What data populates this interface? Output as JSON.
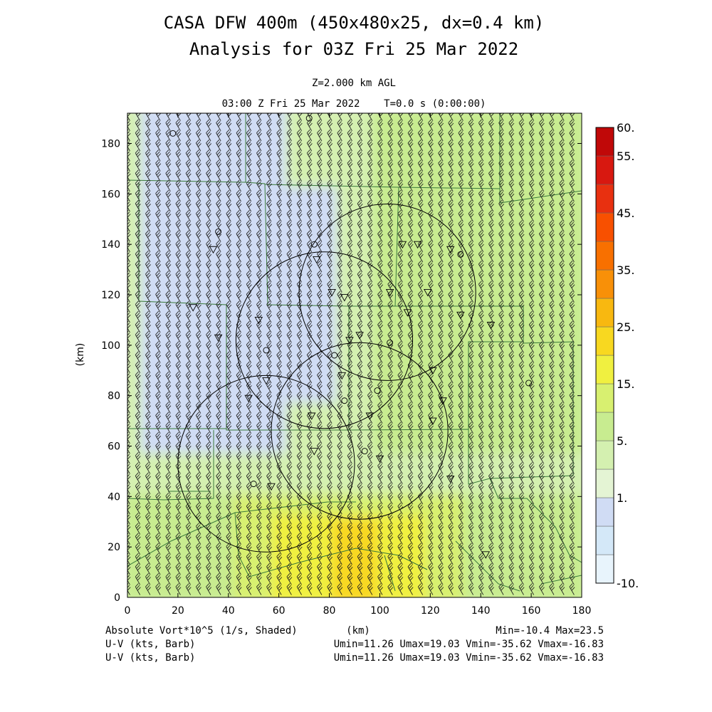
{
  "chart_data": {
    "type": "heatmap",
    "title": "CASA DFW 400m (450x480x25, dx=0.4 km)",
    "subtitle": "Analysis for 03Z Fri 25 Mar 2022",
    "level_label": "Z=2.000 km AGL",
    "time_label": "03:00 Z Fri 25 Mar 2022    T=0.0 s (0:00:00)",
    "xlabel": "(km)",
    "ylabel": "(km)",
    "xlim": [
      0,
      180
    ],
    "ylim": [
      0,
      192
    ],
    "x_ticks": [
      0,
      20,
      40,
      60,
      80,
      100,
      120,
      140,
      160,
      180
    ],
    "y_ticks": [
      0,
      20,
      40,
      60,
      80,
      100,
      120,
      140,
      160,
      180
    ],
    "field_label": "Absolute Vort*10^5 (1/s, Shaded)",
    "stats": "Min=-10.4 Max=23.5",
    "barb_lines": [
      {
        "label": "U-V (kts, Barb)",
        "stats": "Umin=11.26 Umax=19.03 Vmin=-35.62 Vmax=-16.83"
      },
      {
        "label": "U-V (kts, Barb)",
        "stats": "Umin=11.26 Umax=19.03 Vmin=-35.62 Vmax=-16.83"
      }
    ],
    "colorbar": {
      "labels": [
        "60.",
        "55.",
        "45.",
        "35.",
        "25.",
        "15.",
        "5.",
        "1.",
        "-10."
      ],
      "levels": [
        -10,
        -5,
        -1,
        1,
        3,
        5,
        10,
        15,
        20,
        25,
        30,
        35,
        40,
        45,
        50,
        55,
        60
      ],
      "colors": [
        "#e8f4fc",
        "#d4e8f8",
        "#d0dcf4",
        "#e4f4d4",
        "#d4f0b0",
        "#c8ec90",
        "#d8f070",
        "#f0f040",
        "#f8d820",
        "#f8b810",
        "#f89008",
        "#f87000",
        "#f85000",
        "#e83010",
        "#d81810",
        "#c00808"
      ]
    },
    "field_regions": [
      {
        "name": "base",
        "x": [
          0,
          180
        ],
        "y": [
          0,
          192
        ],
        "value": 3
      },
      {
        "name": "south-band",
        "x": [
          0,
          180
        ],
        "y": [
          0,
          38
        ],
        "value": 8
      },
      {
        "name": "south-yellow",
        "x": [
          45,
          130
        ],
        "y": [
          0,
          38
        ],
        "value": 14
      },
      {
        "name": "south-core",
        "x": [
          60,
          115
        ],
        "y": [
          0,
          30
        ],
        "value": 17
      },
      {
        "name": "orange-core",
        "x": [
          84,
          96
        ],
        "y": [
          0,
          28
        ],
        "value": 22
      },
      {
        "name": "northeast",
        "x": [
          100,
          180
        ],
        "y": [
          60,
          192
        ],
        "value": 6
      },
      {
        "name": "west-blue",
        "x": [
          8,
          60
        ],
        "y": [
          60,
          192
        ],
        "value": 0
      },
      {
        "name": "west-blue-2",
        "x": [
          25,
          80
        ],
        "y": [
          80,
          160
        ],
        "value": 0
      }
    ],
    "radar_rings": [
      {
        "x": 103,
        "y": 121,
        "r": 35
      },
      {
        "x": 78,
        "y": 102,
        "r": 35
      },
      {
        "x": 92,
        "y": 66,
        "r": 35
      },
      {
        "x": 55,
        "y": 53,
        "r": 35
      }
    ],
    "wind": {
      "u": 15,
      "v": -26,
      "spacing": 4
    }
  }
}
